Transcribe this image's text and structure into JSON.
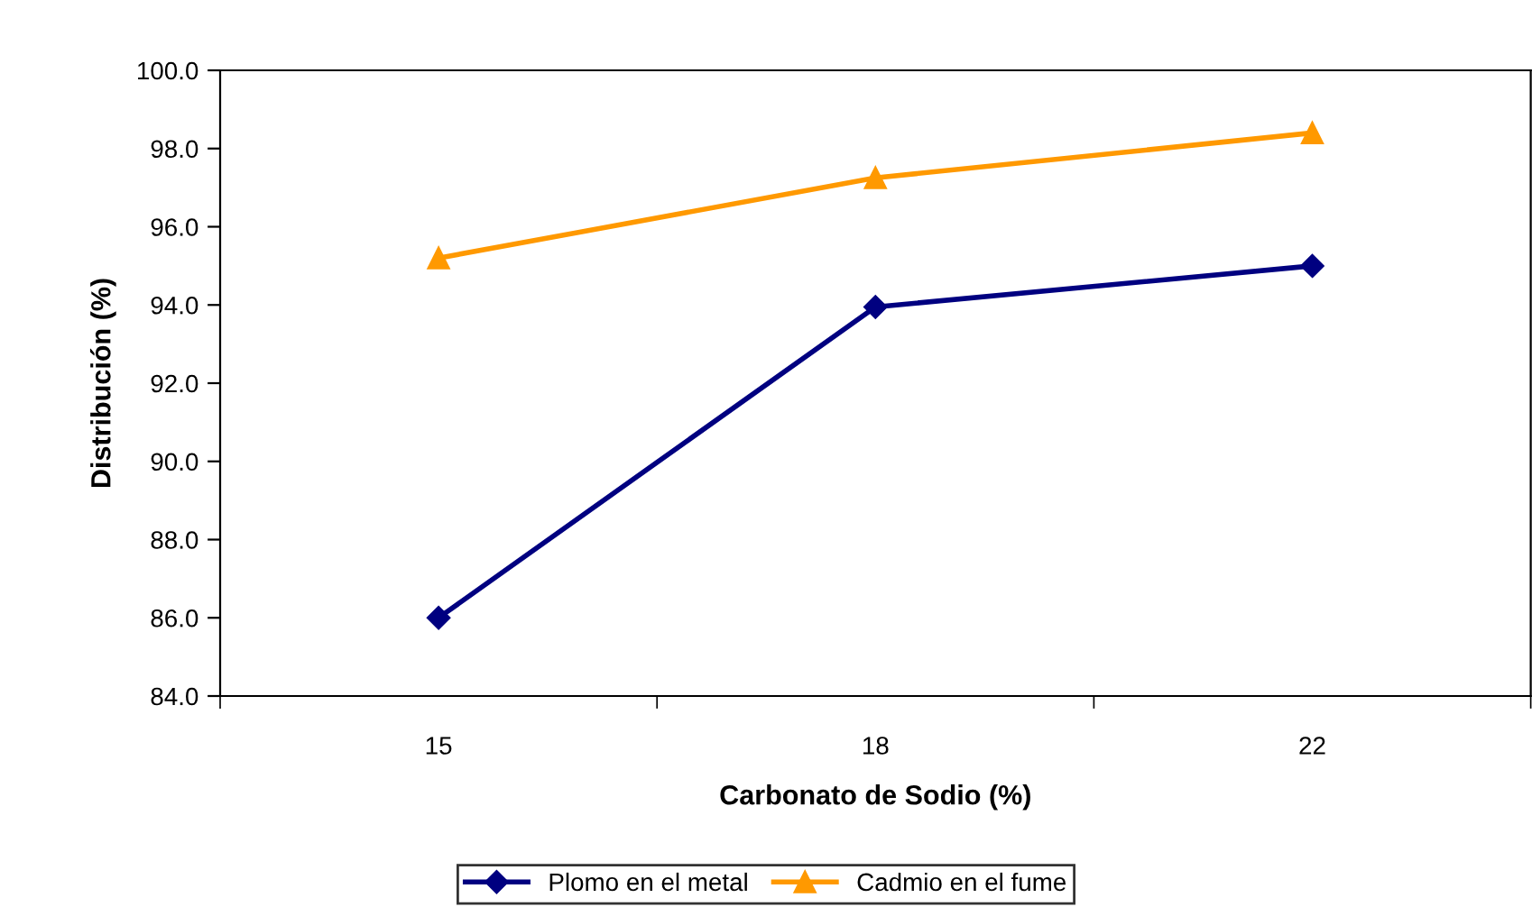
{
  "chart_data": {
    "type": "line",
    "xlabel": "Carbonato de Sodio (%)",
    "ylabel": "Distribución (%)",
    "categories": [
      "15",
      "18",
      "22"
    ],
    "series": [
      {
        "name": "Plomo en el metal",
        "color": "#000080",
        "marker": "diamond",
        "values": [
          86.0,
          93.95,
          95.0
        ]
      },
      {
        "name": "Cadmio en el fume",
        "color": "#ff9900",
        "marker": "triangle",
        "values": [
          95.2,
          97.25,
          98.4
        ]
      }
    ],
    "ylim": [
      84.0,
      100.0
    ],
    "yticks": [
      {
        "value": 84,
        "label": "84.0"
      },
      {
        "value": 86,
        "label": "86.0"
      },
      {
        "value": 88,
        "label": "88.0"
      },
      {
        "value": 90,
        "label": "90.0"
      },
      {
        "value": 92,
        "label": "92.0"
      },
      {
        "value": 94,
        "label": "94.0"
      },
      {
        "value": 96,
        "label": "96.0"
      },
      {
        "value": 98,
        "label": "98.0"
      },
      {
        "value": 100,
        "label": "100.0"
      }
    ],
    "grid": false,
    "legend": "bottom",
    "line_style": "solid"
  }
}
